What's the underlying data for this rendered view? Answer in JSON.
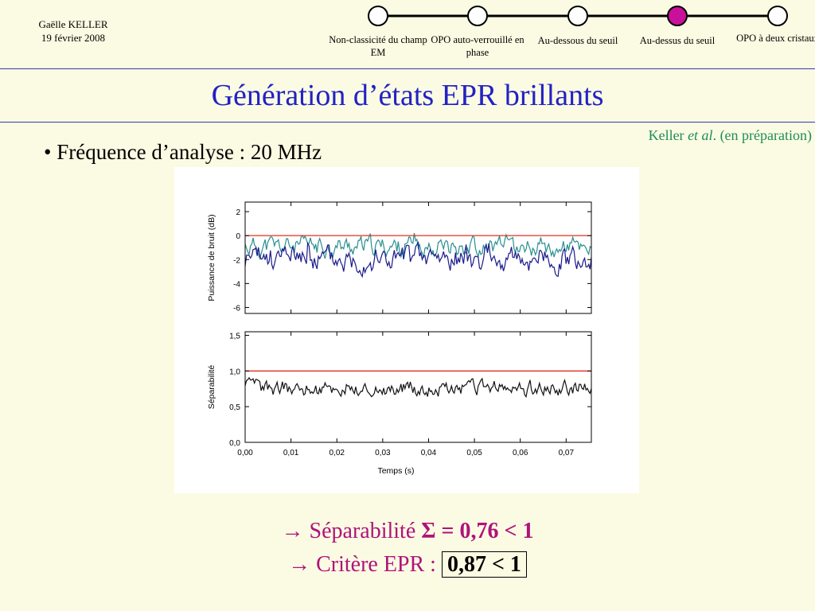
{
  "header": {
    "author": "Gaëlle KELLER",
    "date": "19 février 2008",
    "steps": [
      {
        "label": "Non-classicité du champ EM",
        "active": false
      },
      {
        "label": "OPO auto-verrouillé en phase",
        "active": false
      },
      {
        "label": "Au-dessous du seuil",
        "active": false
      },
      {
        "label": "Au-dessus du seuil",
        "active": true
      },
      {
        "label": "OPO à deux cristaux",
        "active": false
      }
    ],
    "active_color": "#c8109a",
    "rule_color": "#3535b5"
  },
  "title": "Génération d’états EPR brillants",
  "reference": {
    "author": "Keller",
    "etal": "et al",
    "rest": ". (en préparation)"
  },
  "bullet": "• Fréquence d’analyse : 20 MHz",
  "results": {
    "line1": {
      "arrow": "→",
      "text": " Séparabilité ",
      "value": "Σ = 0,76 < 1"
    },
    "line2": {
      "arrow": "→",
      "text": " Critère EPR : ",
      "value": "0,87 < 1"
    }
  },
  "chart_data": [
    {
      "type": "line",
      "ylabel": "Puissance de bruit (dB)",
      "xlim": [
        0,
        0.0755
      ],
      "ylim": [
        -6.5,
        2.8
      ],
      "yticks": [
        "2",
        "0",
        "-2",
        "-4",
        "-6"
      ],
      "ytick_values": [
        2,
        0,
        -2,
        -4,
        -6
      ],
      "reference_line": 0,
      "series": [
        {
          "color": "#2a8f8f",
          "mean": -0.9,
          "amplitude": 0.9,
          "seed": 11
        },
        {
          "color": "#1a1a8a",
          "mean": -1.9,
          "amplitude": 1.2,
          "seed": 23
        }
      ],
      "reference_color": "#e03020"
    },
    {
      "type": "line",
      "ylabel": "Séparabilité",
      "xlabel": "Temps (s)",
      "xlim": [
        0,
        0.0755
      ],
      "ylim": [
        0,
        1.55
      ],
      "yticks": [
        "1,5",
        "1,0",
        "0,5",
        "0,0"
      ],
      "ytick_values": [
        1.5,
        1.0,
        0.5,
        0.0
      ],
      "xticks": [
        "0,00",
        "0,01",
        "0,02",
        "0,03",
        "0,04",
        "0,05",
        "0,06",
        "0,07"
      ],
      "xtick_values": [
        0,
        0.01,
        0.02,
        0.03,
        0.04,
        0.05,
        0.06,
        0.07
      ],
      "reference_line": 1.0,
      "series": [
        {
          "color": "#111111",
          "mean": 0.76,
          "amplitude": 0.12,
          "seed": 37
        }
      ],
      "reference_color": "#e03020"
    }
  ]
}
